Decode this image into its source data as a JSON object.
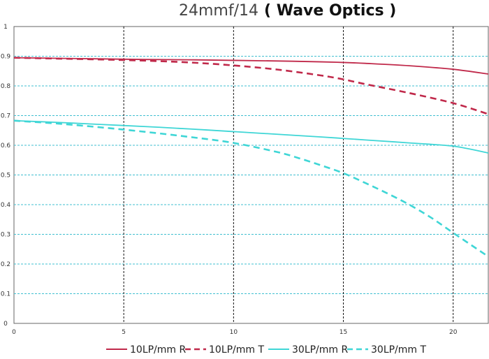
{
  "chart_data": {
    "type": "line",
    "title": "24mmf/14",
    "subtitle": "( Wave Optics )",
    "xlabel": "",
    "ylabel": "",
    "xlim": [
      0,
      21.6
    ],
    "ylim": [
      0,
      1
    ],
    "x_ticks": [
      0,
      5,
      10,
      15,
      20
    ],
    "y_ticks": [
      0,
      0.1,
      0.2,
      0.3,
      0.4,
      0.5,
      0.6,
      0.7,
      0.8,
      0.9,
      1
    ],
    "x_tick_labels": [
      "0",
      "5",
      "10",
      "15",
      "20"
    ],
    "y_tick_labels": [
      "0",
      "0.1",
      "0.2",
      "0.3",
      "0.4",
      "0.5",
      "0.6",
      "0.7",
      "0.8",
      "0.9",
      "1"
    ],
    "grid": true,
    "legend_position": "bottom",
    "series": [
      {
        "name": "10LP/mm R",
        "color": "#c0294a",
        "dash": "solid",
        "x": [
          0,
          2,
          4,
          6,
          8,
          10,
          12,
          14,
          15,
          16,
          18,
          20,
          21.6
        ],
        "y": [
          0.895,
          0.893,
          0.891,
          0.889,
          0.888,
          0.886,
          0.884,
          0.881,
          0.879,
          0.876,
          0.868,
          0.856,
          0.84
        ]
      },
      {
        "name": "10LP/mm T",
        "color": "#c0294a",
        "dash": "dashed",
        "x": [
          0,
          2,
          4,
          6,
          8,
          10,
          12,
          14,
          15,
          16,
          18,
          20,
          21.6
        ],
        "y": [
          0.895,
          0.892,
          0.889,
          0.885,
          0.879,
          0.869,
          0.855,
          0.835,
          0.822,
          0.806,
          0.776,
          0.742,
          0.705
        ]
      },
      {
        "name": "30LP/mm R",
        "color": "#3fd6d6",
        "dash": "solid",
        "x": [
          0,
          2,
          4,
          6,
          8,
          10,
          12,
          14,
          15,
          16,
          18,
          20,
          21.6
        ],
        "y": [
          0.683,
          0.677,
          0.67,
          0.663,
          0.655,
          0.646,
          0.637,
          0.628,
          0.623,
          0.618,
          0.608,
          0.597,
          0.574
        ]
      },
      {
        "name": "30LP/mm T",
        "color": "#3fd6d6",
        "dash": "dashed",
        "x": [
          0,
          2,
          4,
          6,
          8,
          10,
          12,
          13,
          14,
          15,
          16,
          17,
          18,
          19,
          20,
          21,
          21.6
        ],
        "y": [
          0.683,
          0.673,
          0.66,
          0.645,
          0.628,
          0.608,
          0.577,
          0.556,
          0.532,
          0.506,
          0.473,
          0.438,
          0.4,
          0.356,
          0.305,
          0.255,
          0.225
        ]
      }
    ]
  }
}
